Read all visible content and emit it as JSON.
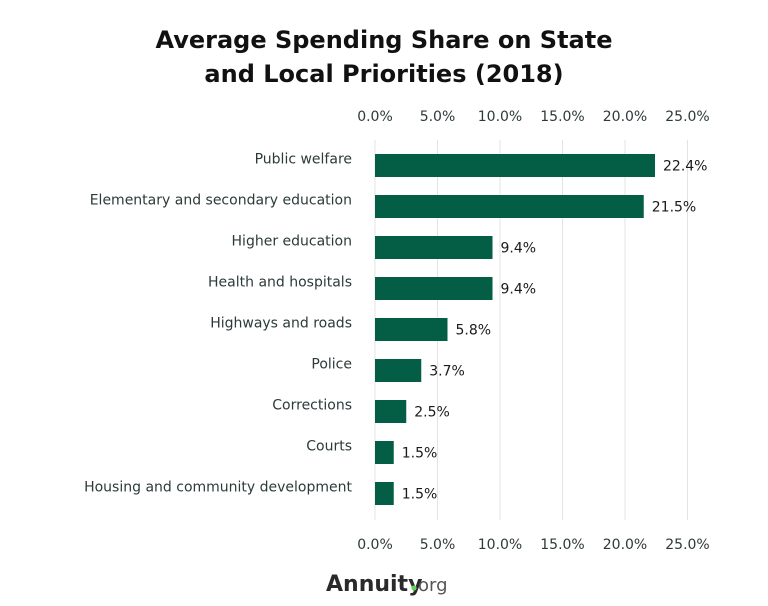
{
  "chart_data": {
    "type": "bar",
    "orientation": "horizontal",
    "title": [
      "Average Spending Share on State",
      "and Local Priorities (2018)"
    ],
    "categories": [
      "Public welfare",
      "Elementary and secondary education",
      "Higher education",
      "Health and hospitals",
      "Highways and roads",
      "Police",
      "Corrections",
      "Courts",
      "Housing and community development"
    ],
    "values": [
      22.4,
      21.5,
      9.4,
      9.4,
      5.8,
      3.7,
      2.5,
      1.5,
      1.5
    ],
    "data_labels": [
      "22.4%",
      "21.5%",
      "9.4%",
      "9.4%",
      "5.8%",
      "3.7%",
      "2.5%",
      "1.5%",
      "1.5%"
    ],
    "xlim": [
      0,
      25
    ],
    "xticks": [
      0,
      5,
      10,
      15,
      20,
      25
    ],
    "xtick_labels": [
      "0.0%",
      "5.0%",
      "10.0%",
      "15.0%",
      "20.0%",
      "25.0%"
    ],
    "xaxis_position": "top and bottom",
    "grid": true,
    "xlabel": "",
    "ylabel": "",
    "bar_color": "#035e45",
    "grid_color": "#e3e3e3"
  },
  "logo": {
    "text": "Annuity.org",
    "main": "Annuity",
    "dot_color": "#5fd35a",
    "suffix": "org"
  }
}
